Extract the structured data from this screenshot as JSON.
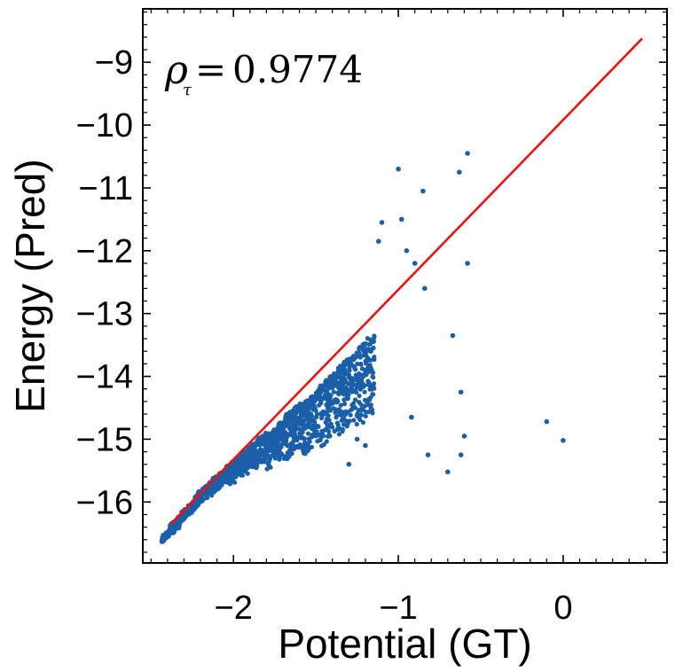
{
  "chart_data": {
    "type": "scatter",
    "title": "",
    "xlabel": "Potential (GT)",
    "ylabel": "Energy (Pred)",
    "xlim": [
      -2.55,
      0.63
    ],
    "ylim": [
      -16.97,
      -8.15
    ],
    "xticks": [
      -2,
      -1,
      0
    ],
    "yticks": [
      -16,
      -15,
      -14,
      -13,
      -12,
      -11,
      -10,
      -9
    ],
    "xtick_labels": [
      "−2",
      "−1",
      "0"
    ],
    "ytick_labels": [
      "−16",
      "−15",
      "−14",
      "−13",
      "−12",
      "−11",
      "−10",
      "−9"
    ],
    "grid": false,
    "annotation": {
      "symbol": "ρ",
      "subscript": "τ",
      "equals": "=",
      "value": "0.9774"
    },
    "colors": {
      "points": "#1a5fa8",
      "fit": "#ee1111",
      "axis": "#000000"
    },
    "fit_line": {
      "x": [
        -2.38,
        0.48
      ],
      "y": [
        -16.35,
        -8.62
      ]
    },
    "outliers": {
      "x": [
        -1.0,
        -0.98,
        -0.63,
        -0.58,
        -0.85,
        -1.1,
        -1.12,
        -0.95,
        -0.9,
        -0.58,
        -0.84,
        -0.67,
        -0.62,
        -0.6,
        -0.62,
        -0.1,
        0.0,
        -0.82,
        -0.7,
        -1.2,
        -1.25,
        -0.92,
        -1.3
      ],
      "y": [
        -10.7,
        -11.5,
        -10.75,
        -10.45,
        -11.05,
        -11.55,
        -11.85,
        -12.0,
        -12.2,
        -12.2,
        -12.6,
        -13.35,
        -14.25,
        -14.95,
        -15.25,
        -14.72,
        -15.02,
        -15.25,
        -15.52,
        -15.1,
        -15.0,
        -14.65,
        -15.4
      ]
    },
    "clusters": {
      "x": [
        -2.38,
        -2.33,
        -2.26,
        -2.18,
        -2.08,
        -1.97,
        -1.86,
        -1.75,
        -1.64,
        -1.53,
        -1.42,
        -1.31,
        -1.2
      ],
      "y": [
        -16.45,
        -16.25,
        -16.05,
        -15.8,
        -15.55,
        -15.3,
        -15.05,
        -14.85,
        -14.55,
        -14.35,
        -14.05,
        -13.75,
        -13.45
      ],
      "spread": [
        0.05,
        0.08,
        0.12,
        0.18,
        0.25,
        0.35,
        0.45,
        0.6,
        0.75,
        0.9,
        1.05,
        1.2,
        1.4
      ]
    }
  }
}
